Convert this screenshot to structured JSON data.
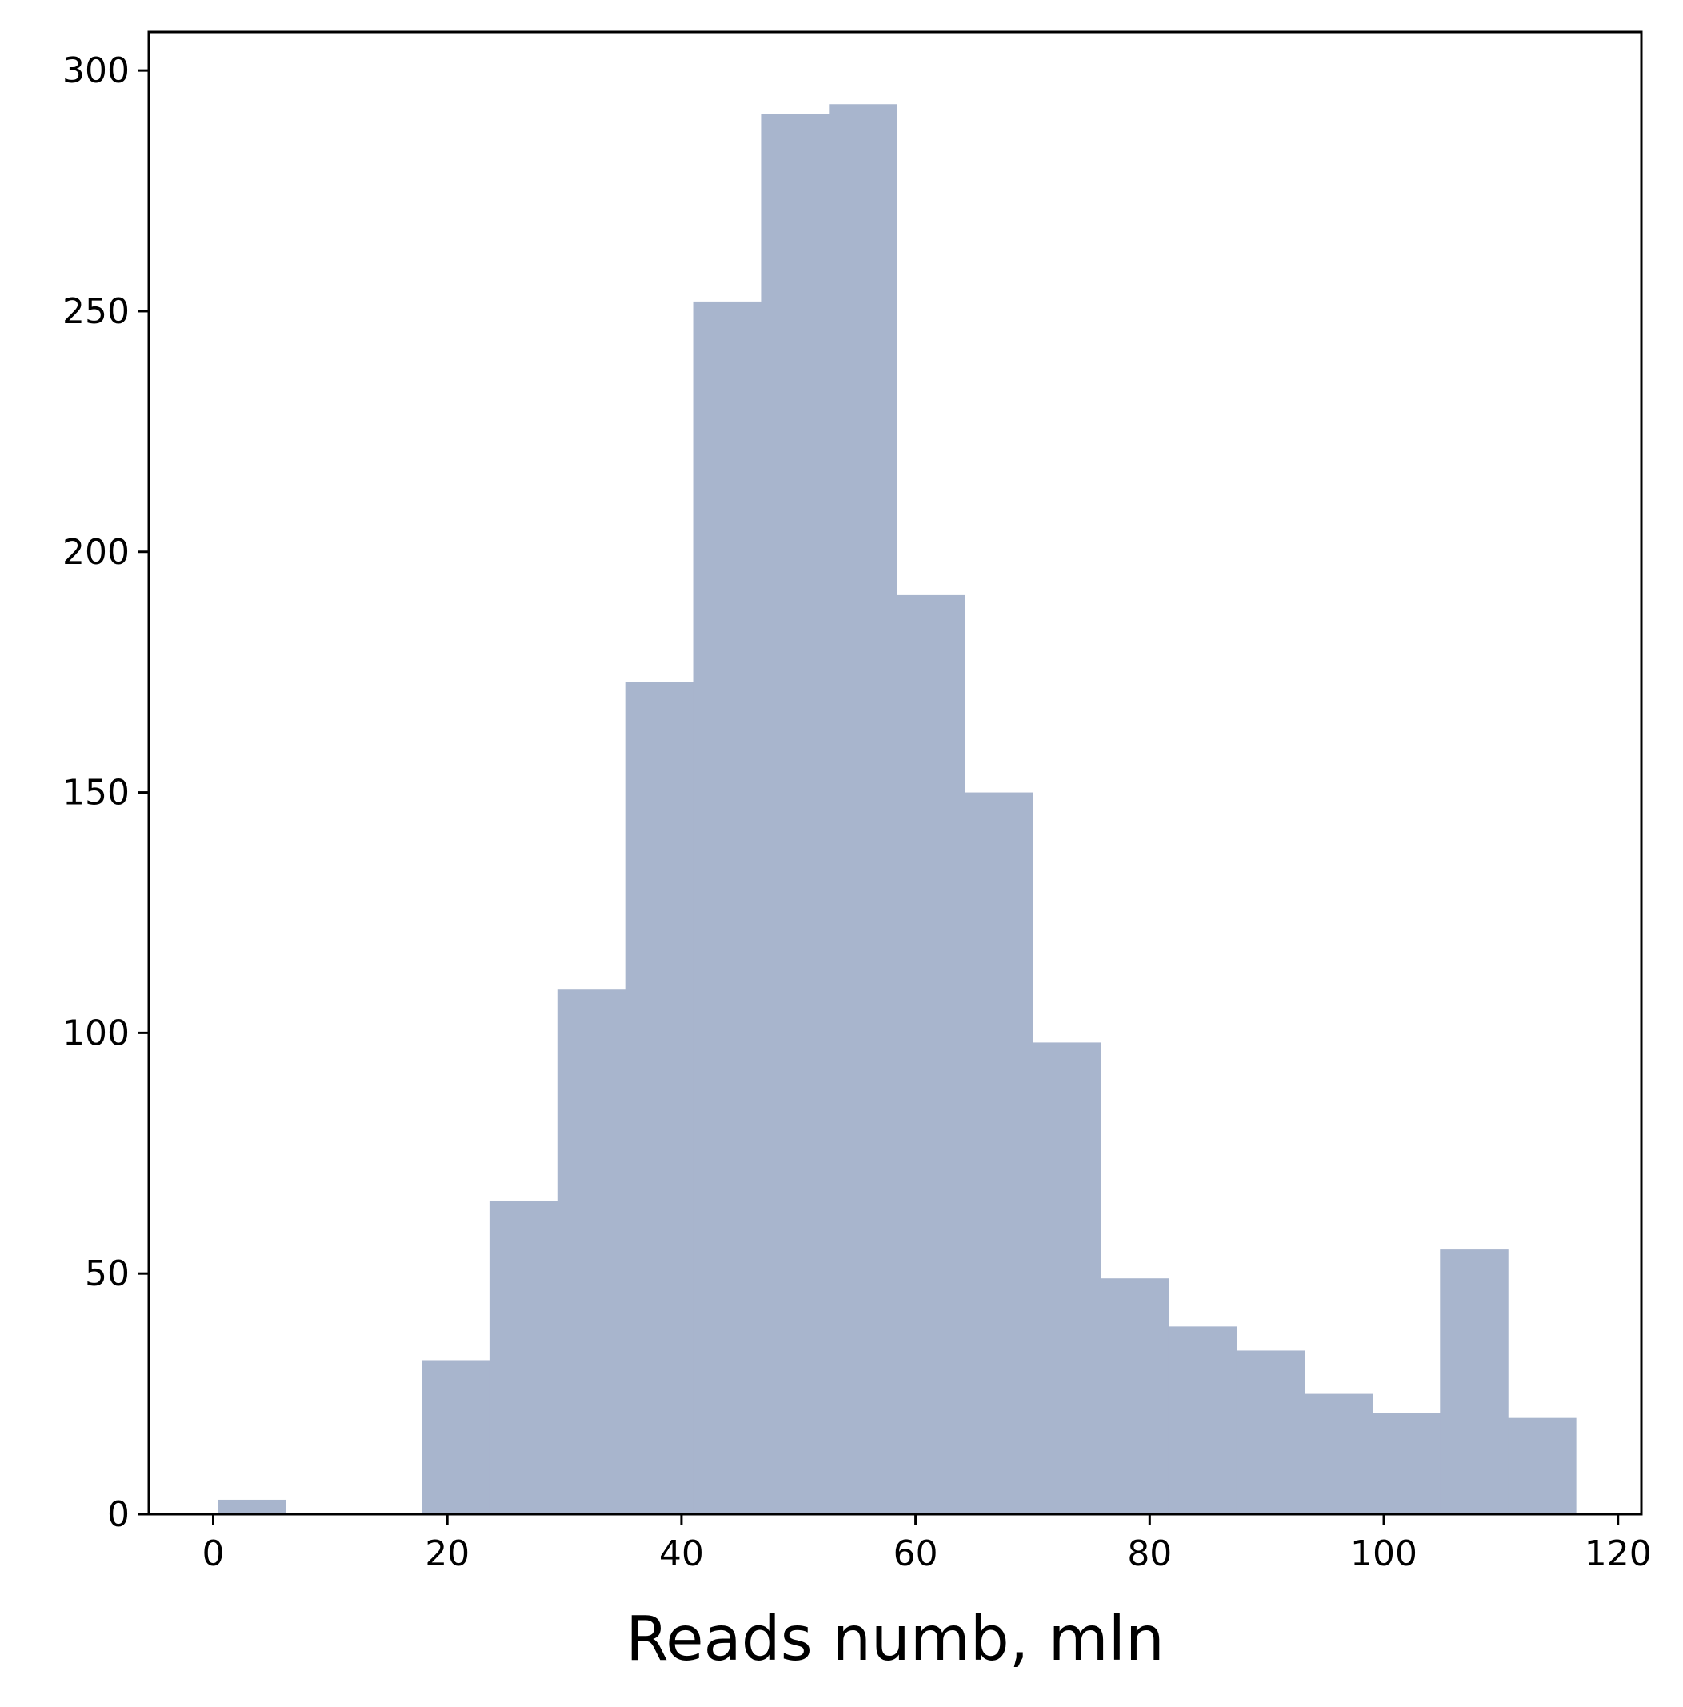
{
  "chart_data": {
    "type": "bar",
    "subtype": "histogram",
    "title": "",
    "xlabel": "Reads numb, mln",
    "ylabel": "",
    "xlim": [
      -5.5,
      122
    ],
    "ylim": [
      0,
      308
    ],
    "x_ticks": [
      0,
      20,
      40,
      60,
      80,
      100,
      120
    ],
    "y_ticks": [
      0,
      50,
      100,
      150,
      200,
      250,
      300
    ],
    "bin_edges": [
      0.4,
      6.2,
      12.0,
      17.8,
      23.6,
      29.4,
      35.2,
      41.0,
      46.8,
      52.6,
      58.4,
      64.2,
      70.0,
      75.8,
      81.6,
      87.4,
      93.2,
      99.0,
      104.8,
      110.6,
      116.4
    ],
    "values": [
      3,
      0,
      0,
      32,
      65,
      109,
      173,
      252,
      291,
      293,
      191,
      150,
      98,
      49,
      39,
      34,
      25,
      21,
      55,
      20
    ],
    "bar_color": "#a8b5cd",
    "grid": false,
    "legend": "none"
  }
}
